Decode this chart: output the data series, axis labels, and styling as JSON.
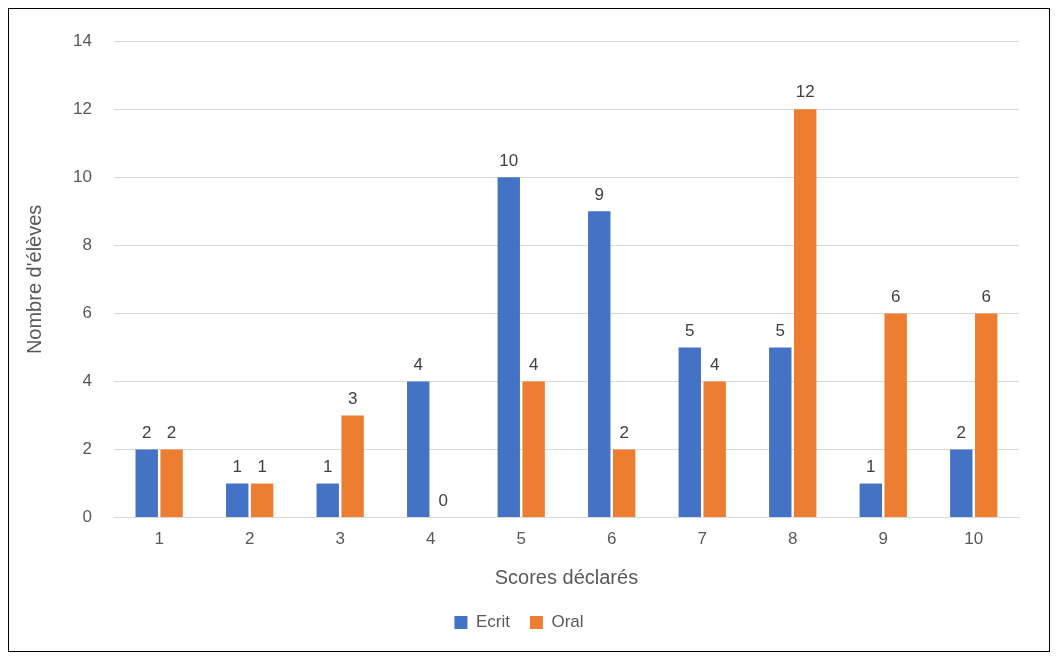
{
  "chart_data": {
    "type": "bar",
    "xlabel": "Scores déclarés",
    "ylabel": "Nombre d'élèves",
    "categories": [
      "1",
      "2",
      "3",
      "4",
      "5",
      "6",
      "7",
      "8",
      "9",
      "10"
    ],
    "series": [
      {
        "name": "Ecrit",
        "color": "#4472c4",
        "values": [
          2,
          1,
          1,
          4,
          10,
          9,
          5,
          5,
          1,
          2
        ]
      },
      {
        "name": "Oral",
        "color": "#ed7d31",
        "values": [
          2,
          1,
          3,
          0,
          4,
          2,
          4,
          12,
          6,
          6
        ]
      }
    ],
    "ylim": [
      0,
      14
    ],
    "yticks": [
      0,
      2,
      4,
      6,
      8,
      10,
      12,
      14
    ],
    "grid": "y",
    "legend": "bottom",
    "data_labels": true
  }
}
